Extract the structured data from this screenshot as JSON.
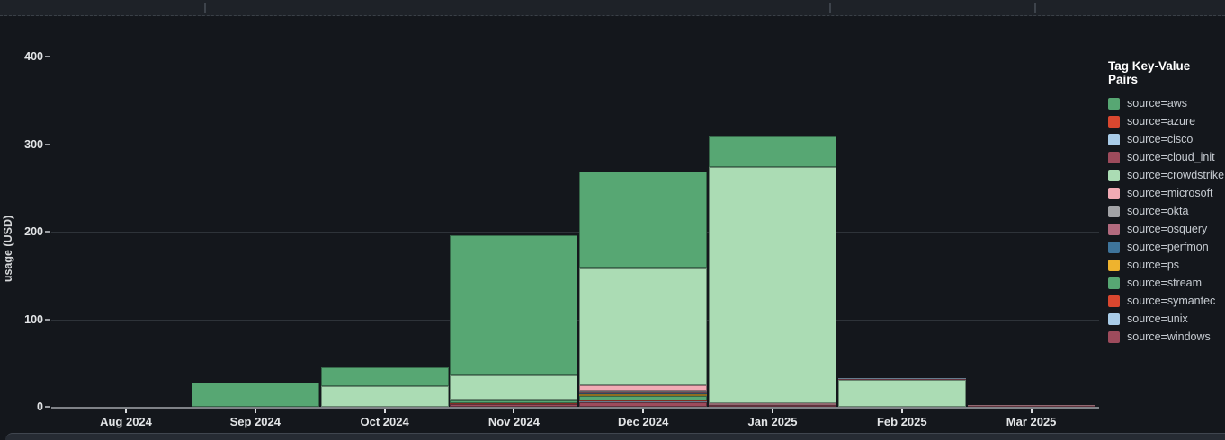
{
  "chart_data": {
    "type": "bar",
    "stacked": true,
    "ylabel": "usage (USD)",
    "legend_title": "Tag Key-Value Pairs",
    "legend_position": "right",
    "grid": true,
    "categories": [
      "Aug 2024",
      "Sep 2024",
      "Oct 2024",
      "Nov 2024",
      "Dec 2024",
      "Jan 2025",
      "Feb 2025",
      "Mar 2025"
    ],
    "yticks": [
      0,
      100,
      200,
      300,
      400
    ],
    "ylim": [
      0,
      420
    ],
    "series": [
      {
        "name": "source=aws",
        "color": "#57a773",
        "values": [
          0,
          28,
          21,
          160,
          110,
          35,
          0,
          0
        ]
      },
      {
        "name": "source=azure",
        "color": "#d9472f",
        "values": [
          0,
          0,
          0,
          0,
          0.5,
          0,
          0,
          0
        ]
      },
      {
        "name": "source=cisco",
        "color": "#a9cce8",
        "values": [
          0,
          0,
          0,
          0,
          0,
          0,
          1,
          0
        ]
      },
      {
        "name": "source=cloud_init",
        "color": "#9d4b5c",
        "values": [
          0,
          0,
          0,
          0,
          0,
          0,
          1,
          0
        ]
      },
      {
        "name": "source=crowdstrike",
        "color": "#abdcb4",
        "values": [
          0,
          0,
          24,
          28,
          134,
          270,
          31,
          0
        ]
      },
      {
        "name": "source=microsoft",
        "color": "#f2abb5",
        "values": [
          0,
          0,
          0,
          0,
          6,
          2,
          0,
          0.3
        ]
      },
      {
        "name": "source=okta",
        "color": "#a2a3a6",
        "values": [
          0,
          0,
          0,
          0,
          1,
          0,
          0,
          0
        ]
      },
      {
        "name": "source=osquery",
        "color": "#b26a7e",
        "values": [
          0,
          0,
          0,
          0,
          2,
          0,
          0,
          0
        ]
      },
      {
        "name": "source=perfmon",
        "color": "#3e749b",
        "values": [
          0,
          0,
          0,
          0,
          1,
          0,
          0,
          0
        ]
      },
      {
        "name": "source=ps",
        "color": "#eeb32e",
        "values": [
          0,
          0,
          0,
          1,
          2,
          0,
          0,
          0
        ]
      },
      {
        "name": "source=stream",
        "color": "#57a773",
        "values": [
          0,
          0,
          0,
          3,
          5,
          0,
          0,
          0
        ]
      },
      {
        "name": "source=symantec",
        "color": "#d9472f",
        "values": [
          0,
          0,
          0,
          1,
          1,
          0,
          0,
          0
        ]
      },
      {
        "name": "source=unix",
        "color": "#a9cce8",
        "values": [
          0,
          0,
          0,
          0,
          1,
          0,
          0,
          0
        ]
      },
      {
        "name": "source=windows",
        "color": "#9d4b5c",
        "values": [
          0,
          0,
          0,
          3,
          5,
          2,
          0,
          0.7
        ]
      }
    ]
  }
}
